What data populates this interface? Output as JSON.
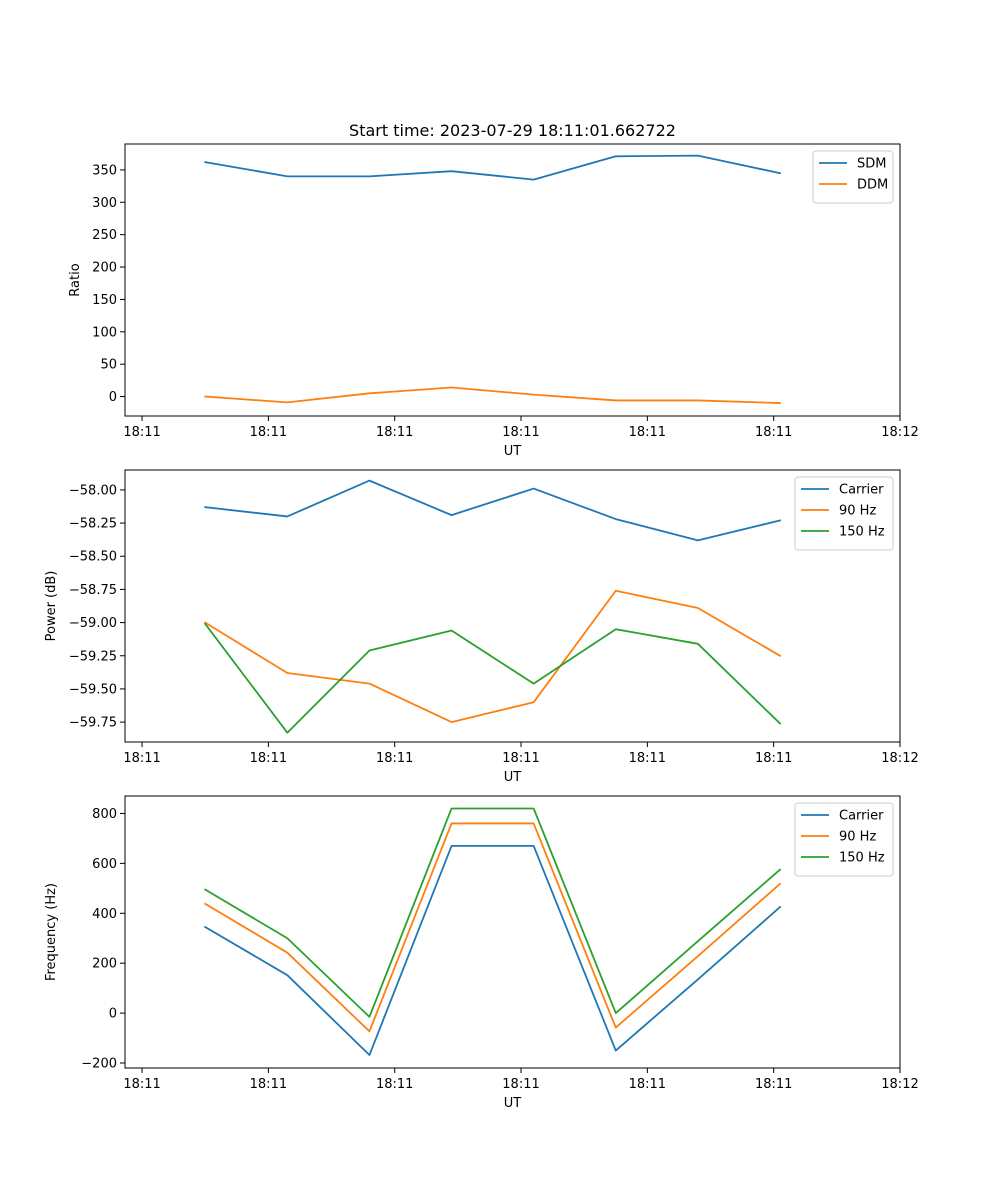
{
  "chart_data": [
    {
      "type": "line",
      "title": "Start time: 2023-07-29 18:11:01.662722",
      "xlabel": "UT",
      "ylabel": "Ratio",
      "ylim": [
        -30,
        390
      ],
      "yticks": [
        0,
        50,
        100,
        150,
        200,
        250,
        300,
        350
      ],
      "ytick_labels": [
        "0",
        "50",
        "100",
        "150",
        "200",
        "250",
        "300",
        "350"
      ],
      "xticks": [
        0,
        1,
        2,
        3,
        4,
        5,
        6
      ],
      "xtick_labels": [
        "18:11",
        "18:11",
        "18:11",
        "18:11",
        "18:11",
        "18:11",
        "18:12"
      ],
      "xlim": [
        -0.135,
        6.0
      ],
      "x": [
        0.5,
        1.15,
        1.8,
        2.45,
        3.1,
        3.75,
        4.4,
        5.05
      ],
      "legend_position": "upper right",
      "series": [
        {
          "name": "SDM",
          "color": "#1f77b4",
          "values": [
            362,
            340,
            340,
            348,
            335,
            371,
            372,
            345
          ]
        },
        {
          "name": "DDM",
          "color": "#ff7f0e",
          "values": [
            0,
            -9,
            5,
            14,
            3,
            -6,
            -6,
            -10
          ]
        }
      ]
    },
    {
      "type": "line",
      "title": "",
      "xlabel": "UT",
      "ylabel": "Power (dB)",
      "ylim": [
        -59.9,
        -57.85
      ],
      "yticks": [
        -58.0,
        -58.25,
        -58.5,
        -58.75,
        -59.0,
        -59.25,
        -59.5,
        -59.75
      ],
      "ytick_labels": [
        "−58.00",
        "−58.25",
        "−58.50",
        "−58.75",
        "−59.00",
        "−59.25",
        "−59.50",
        "−59.75"
      ],
      "xticks": [
        0,
        1,
        2,
        3,
        4,
        5,
        6
      ],
      "xtick_labels": [
        "18:11",
        "18:11",
        "18:11",
        "18:11",
        "18:11",
        "18:11",
        "18:12"
      ],
      "xlim": [
        -0.135,
        6.0
      ],
      "x": [
        0.5,
        1.15,
        1.8,
        2.45,
        3.1,
        3.75,
        4.4,
        5.05
      ],
      "legend_position": "upper right",
      "series": [
        {
          "name": "Carrier",
          "color": "#1f77b4",
          "values": [
            -58.13,
            -58.2,
            -57.93,
            -58.19,
            -57.99,
            -58.22,
            -58.38,
            -58.23
          ]
        },
        {
          "name": "90 Hz",
          "color": "#ff7f0e",
          "values": [
            -59.0,
            -59.38,
            -59.46,
            -59.75,
            -59.6,
            -58.76,
            -58.89,
            -59.25
          ]
        },
        {
          "name": "150 Hz",
          "color": "#2ca02c",
          "values": [
            -59.01,
            -59.83,
            -59.21,
            -59.06,
            -59.46,
            -59.05,
            -59.16,
            -59.76
          ]
        }
      ]
    },
    {
      "type": "line",
      "title": "",
      "xlabel": "UT",
      "ylabel": "Frequency (Hz)",
      "ylim": [
        -220,
        870
      ],
      "yticks": [
        -200,
        0,
        200,
        400,
        600,
        800
      ],
      "ytick_labels": [
        "−200",
        "0",
        "200",
        "400",
        "600",
        "800"
      ],
      "xticks": [
        0,
        1,
        2,
        3,
        4,
        5,
        6
      ],
      "xtick_labels": [
        "18:11",
        "18:11",
        "18:11",
        "18:11",
        "18:11",
        "18:11",
        "18:12"
      ],
      "xlim": [
        -0.135,
        6.0
      ],
      "x": [
        0.5,
        1.15,
        1.8,
        2.45,
        3.1,
        3.75,
        4.4,
        5.05
      ],
      "legend_position": "upper right",
      "series": [
        {
          "name": "Carrier",
          "color": "#1f77b4",
          "values": [
            345,
            152,
            -168,
            670,
            670,
            -150,
            135,
            425
          ]
        },
        {
          "name": "90 Hz",
          "color": "#ff7f0e",
          "values": [
            438,
            242,
            -73,
            760,
            760,
            -58,
            228,
            518
          ]
        },
        {
          "name": "150 Hz",
          "color": "#2ca02c",
          "values": [
            495,
            300,
            -15,
            820,
            820,
            0,
            288,
            575
          ]
        }
      ]
    }
  ]
}
